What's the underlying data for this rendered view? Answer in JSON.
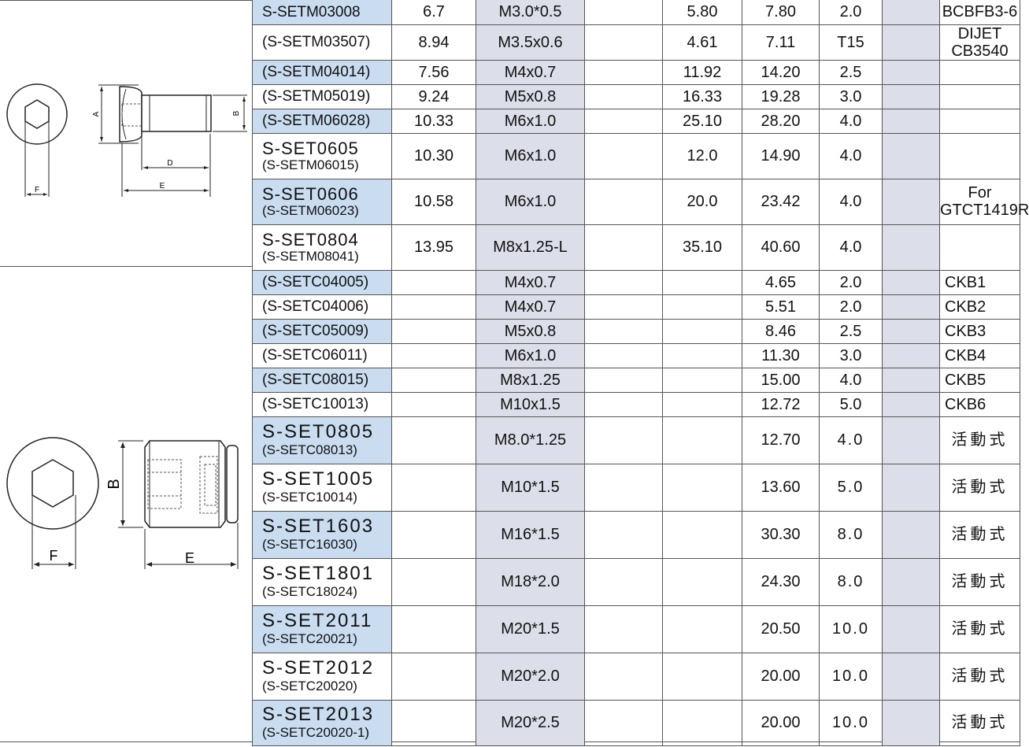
{
  "colors": {
    "code_highlight": "#c9dcf0",
    "column_shade": "#dcdfea",
    "line": "#555555"
  },
  "figure_top": {
    "labels": {
      "a": "A",
      "b": "B",
      "d": "D",
      "e": "E",
      "f": "F"
    }
  },
  "figure_bottom": {
    "labels": {
      "b": "B",
      "e": "E",
      "f": "F"
    }
  },
  "rows": [
    {
      "main": "S-SETM03008",
      "sub": "",
      "c1": "6.7",
      "c2": "M3.0*0.5",
      "c3": "",
      "c4": "5.80",
      "c5": "7.80",
      "c6": "2.0",
      "c7": "",
      "c8": "BCBFB3-6",
      "note_kind": "note",
      "highlight": true,
      "style": "single"
    },
    {
      "main": "(S-SETM03507)",
      "sub": "",
      "c1": "8.94",
      "c2": "M3.5x0.6",
      "c3": "",
      "c4": "4.61",
      "c5": "7.11",
      "c6": "T15",
      "c7": "",
      "c8": "DIJET",
      "c8b": "CB3540",
      "note_kind": "note2",
      "highlight": false,
      "style": "single"
    },
    {
      "main": "(S-SETM04014)",
      "sub": "",
      "c1": "7.56",
      "c2": "M4x0.7",
      "c3": "",
      "c4": "11.92",
      "c5": "14.20",
      "c6": "2.5",
      "c7": "",
      "c8": "",
      "note_kind": "note",
      "highlight": true,
      "style": "single"
    },
    {
      "main": "(S-SETM05019)",
      "sub": "",
      "c1": "9.24",
      "c2": "M5x0.8",
      "c3": "",
      "c4": "16.33",
      "c5": "19.28",
      "c6": "3.0",
      "c7": "",
      "c8": "",
      "note_kind": "note",
      "highlight": false,
      "style": "single"
    },
    {
      "main": "(S-SETM06028)",
      "sub": "",
      "c1": "10.33",
      "c2": "M6x1.0",
      "c3": "",
      "c4": "25.10",
      "c5": "28.20",
      "c6": "4.0",
      "c7": "",
      "c8": "",
      "note_kind": "note",
      "highlight": true,
      "style": "single"
    },
    {
      "main": "S-SET0605",
      "sub": "(S-SETM06015)",
      "c1": "10.30",
      "c2": "M6x1.0",
      "c3": "",
      "c4": "12.0",
      "c5": "14.90",
      "c6": "4.0",
      "c7": "",
      "c8": "",
      "note_kind": "note",
      "highlight": false,
      "style": "double"
    },
    {
      "main": "S-SET0606",
      "sub": "(S-SETM06023)",
      "c1": "10.58",
      "c2": "M6x1.0",
      "c3": "",
      "c4": "20.0",
      "c5": "23.42",
      "c6": "4.0",
      "c7": "",
      "c8": "For",
      "c8b": "GTCT1419R",
      "note_kind": "note",
      "highlight": true,
      "style": "double"
    },
    {
      "main": "S-SET0804",
      "sub": "(S-SETM08041)",
      "c1": "13.95",
      "c2": "M8x1.25-L",
      "c3": "",
      "c4": "35.10",
      "c5": "40.60",
      "c6": "4.0",
      "c7": "",
      "c8": "",
      "note_kind": "note",
      "highlight": false,
      "style": "double"
    },
    {
      "main": "(S-SETC04005)",
      "sub": "",
      "c1": "",
      "c2": "M4x0.7",
      "c3": "",
      "c4": "",
      "c5": "4.65",
      "c6": "2.0",
      "c7": "",
      "c8": "CKB1",
      "note_kind": "ckb",
      "highlight": true,
      "style": "single"
    },
    {
      "main": "(S-SETC04006)",
      "sub": "",
      "c1": "",
      "c2": "M4x0.7",
      "c3": "",
      "c4": "",
      "c5": "5.51",
      "c6": "2.0",
      "c7": "",
      "c8": "CKB2",
      "note_kind": "ckb",
      "highlight": false,
      "style": "single"
    },
    {
      "main": "(S-SETC05009)",
      "sub": "",
      "c1": "",
      "c2": "M5x0.8",
      "c3": "",
      "c4": "",
      "c5": "8.46",
      "c6": "2.5",
      "c7": "",
      "c8": "CKB3",
      "note_kind": "ckb",
      "highlight": true,
      "style": "single"
    },
    {
      "main": "(S-SETC06011)",
      "sub": "",
      "c1": "",
      "c2": "M6x1.0",
      "c3": "",
      "c4": "",
      "c5": "11.30",
      "c6": "3.0",
      "c7": "",
      "c8": "CKB4",
      "note_kind": "ckb",
      "highlight": false,
      "style": "single"
    },
    {
      "main": "(S-SETC08015)",
      "sub": "",
      "c1": "",
      "c2": "M8x1.25",
      "c3": "",
      "c4": "",
      "c5": "15.00",
      "c6": "4.0",
      "c7": "",
      "c8": "CKB5",
      "note_kind": "ckb",
      "highlight": true,
      "style": "single"
    },
    {
      "main": "(S-SETC10013)",
      "sub": "",
      "c1": "",
      "c2": "M10x1.5",
      "c3": "",
      "c4": "",
      "c5": "12.72",
      "c6": "5.0",
      "c7": "",
      "c8": "CKB6",
      "note_kind": "ckb",
      "highlight": false,
      "style": "single"
    },
    {
      "main": "S-SET0805",
      "sub": "(S-SETC08013)",
      "c1": "",
      "c2": "M8.0*1.25",
      "c3": "",
      "c4": "",
      "c5": "12.70",
      "c6": "4.0",
      "c7": "",
      "c8": "活動式",
      "note_kind": "cn",
      "highlight": true,
      "style": "big"
    },
    {
      "main": "S-SET1005",
      "sub": "(S-SETC10014)",
      "c1": "",
      "c2": "M10*1.5",
      "c3": "",
      "c4": "",
      "c5": "13.60",
      "c6": "5.0",
      "c7": "",
      "c8": "活動式",
      "note_kind": "cn",
      "highlight": false,
      "style": "big"
    },
    {
      "main": "S-SET1603",
      "sub": "(S-SETC16030)",
      "c1": "",
      "c2": "M16*1.5",
      "c3": "",
      "c4": "",
      "c5": "30.30",
      "c6": "8.0",
      "c7": "",
      "c8": "活動式",
      "note_kind": "cn",
      "highlight": true,
      "style": "big"
    },
    {
      "main": "S-SET1801",
      "sub": "(S-SETC18024)",
      "c1": "",
      "c2": "M18*2.0",
      "c3": "",
      "c4": "",
      "c5": "24.30",
      "c6": "8.0",
      "c7": "",
      "c8": "活動式",
      "note_kind": "cn",
      "highlight": false,
      "style": "big"
    },
    {
      "main": "S-SET2011",
      "sub": "(S-SETC20021)",
      "c1": "",
      "c2": "M20*1.5",
      "c3": "",
      "c4": "",
      "c5": "20.50",
      "c6": "10.0",
      "c7": "",
      "c8": "活動式",
      "note_kind": "cn",
      "highlight": true,
      "style": "big"
    },
    {
      "main": "S-SET2012",
      "sub": "(S-SETC20020)",
      "c1": "",
      "c2": "M20*2.0",
      "c3": "",
      "c4": "",
      "c5": "20.00",
      "c6": "10.0",
      "c7": "",
      "c8": "活動式",
      "note_kind": "cn",
      "highlight": false,
      "style": "big"
    },
    {
      "main": "S-SET2013",
      "sub": "(S-SETC20020-1)",
      "c1": "",
      "c2": "M20*2.5",
      "c3": "",
      "c4": "",
      "c5": "20.00",
      "c6": "10.0",
      "c7": "",
      "c8": "活動式",
      "note_kind": "cn",
      "highlight": true,
      "style": "big"
    }
  ]
}
